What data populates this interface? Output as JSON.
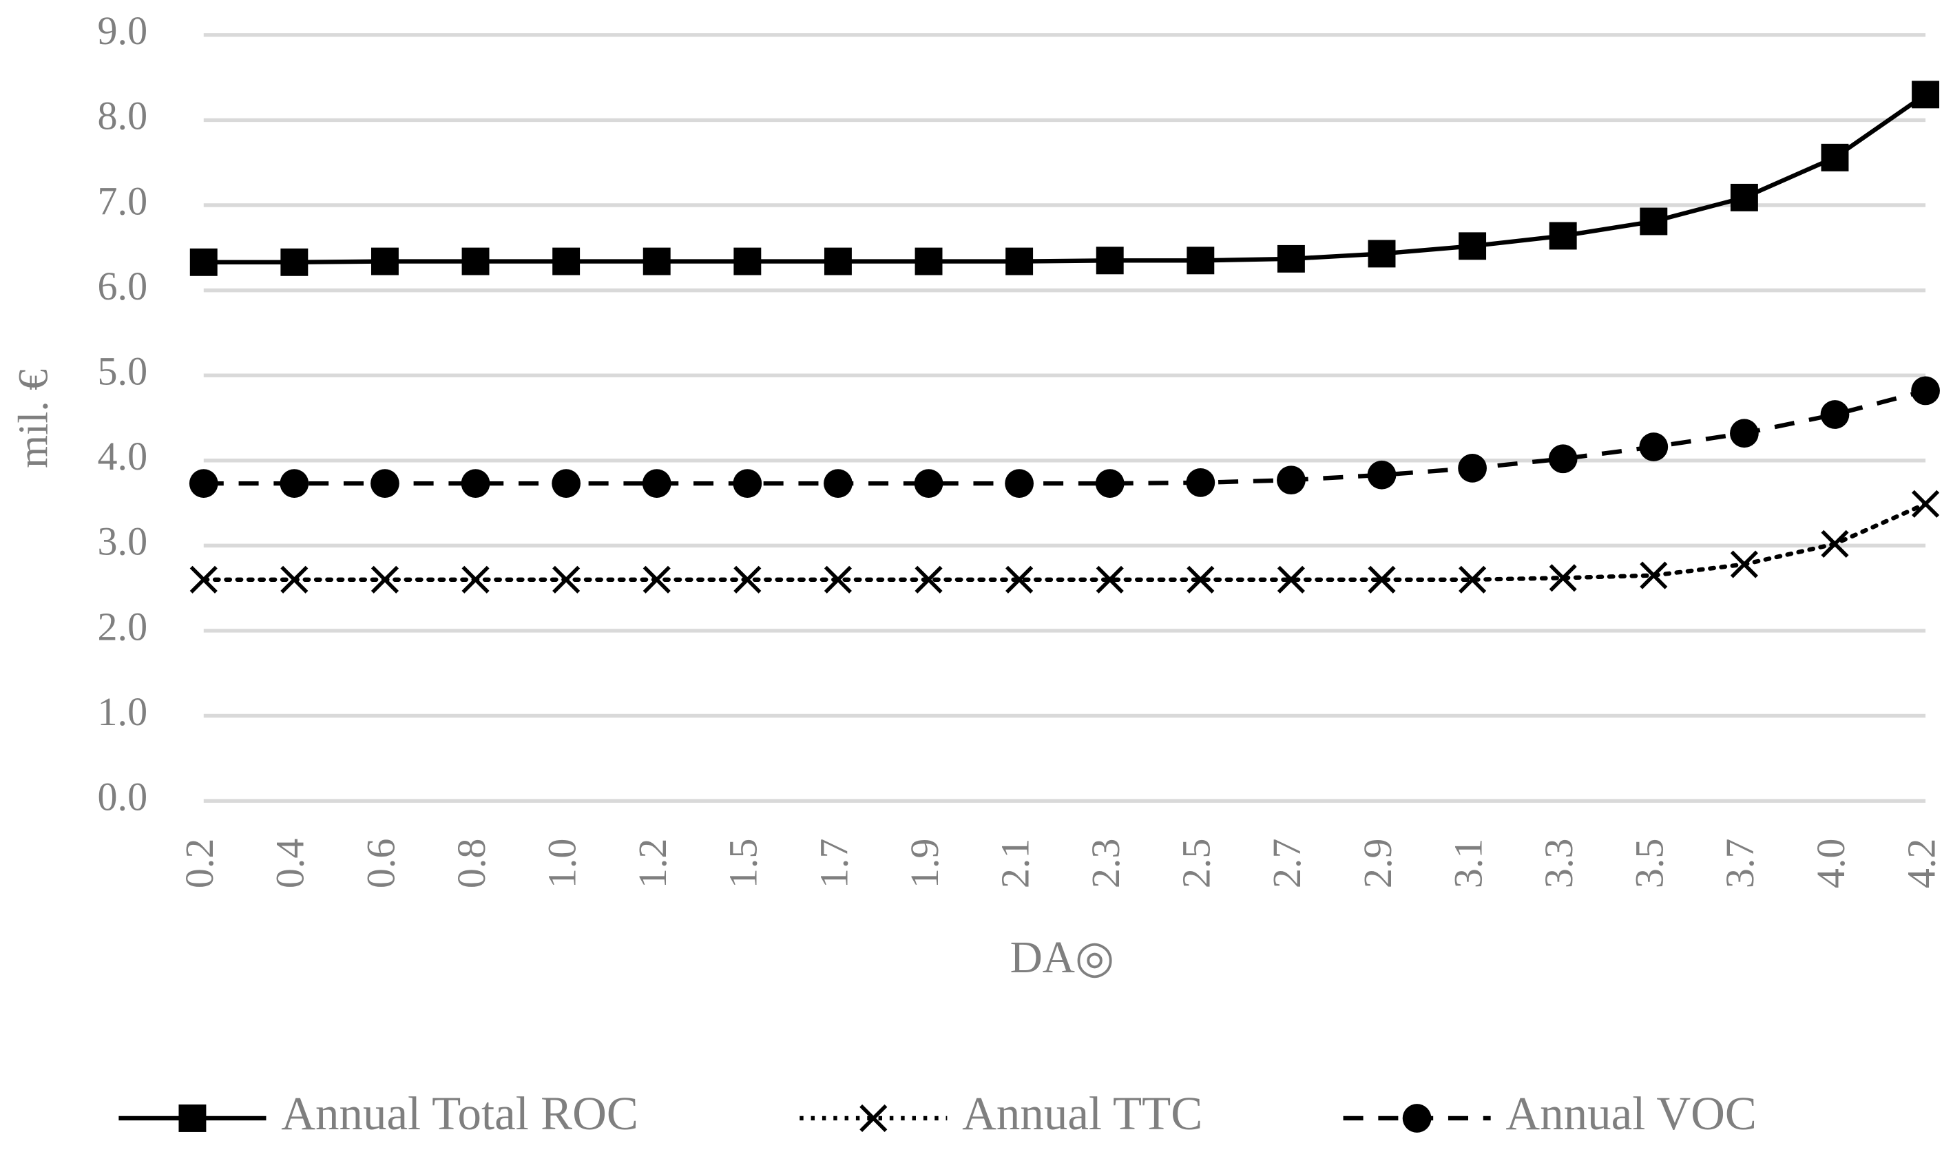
{
  "chart_data": {
    "type": "line",
    "x_label": "DA◎",
    "y_label": "mil. €",
    "categories": [
      "0.2",
      "0.4",
      "0.6",
      "0.8",
      "1.0",
      "1.2",
      "1.5",
      "1.7",
      "1.9",
      "2.1",
      "2.3",
      "2.5",
      "2.7",
      "2.9",
      "3.1",
      "3.3",
      "3.5",
      "3.7",
      "4.0",
      "4.2"
    ],
    "series": [
      {
        "name": "Annual Total ROC",
        "color": "#000000",
        "line_style": "solid",
        "marker": "square",
        "values": [
          6.33,
          6.33,
          6.34,
          6.34,
          6.34,
          6.34,
          6.34,
          6.34,
          6.34,
          6.34,
          6.35,
          6.35,
          6.37,
          6.43,
          6.52,
          6.64,
          6.81,
          7.09,
          7.56,
          8.3
        ]
      },
      {
        "name": "Annual TTC",
        "color": "#000000",
        "line_style": "dotted",
        "marker": "x",
        "values": [
          2.6,
          2.6,
          2.6,
          2.6,
          2.6,
          2.6,
          2.6,
          2.6,
          2.6,
          2.6,
          2.6,
          2.6,
          2.6,
          2.6,
          2.6,
          2.62,
          2.65,
          2.78,
          3.02,
          3.49
        ]
      },
      {
        "name": "Annual VOC",
        "color": "#000000",
        "line_style": "dashed",
        "marker": "circle",
        "values": [
          3.73,
          3.73,
          3.73,
          3.73,
          3.73,
          3.73,
          3.73,
          3.73,
          3.73,
          3.73,
          3.73,
          3.74,
          3.77,
          3.83,
          3.91,
          4.02,
          4.16,
          4.32,
          4.54,
          4.82
        ]
      }
    ],
    "ylim": [
      0,
      9
    ],
    "yticks": [
      {
        "value": 0,
        "label": "0.0"
      },
      {
        "value": 1,
        "label": "1.0"
      },
      {
        "value": 2,
        "label": "2.0"
      },
      {
        "value": 3,
        "label": "3.0"
      },
      {
        "value": 4,
        "label": "4.0"
      },
      {
        "value": 5,
        "label": "5.0"
      },
      {
        "value": 6,
        "label": "6.0"
      },
      {
        "value": 7,
        "label": "7.0"
      },
      {
        "value": 8,
        "label": "8.0"
      },
      {
        "value": 9,
        "label": "9.0"
      }
    ],
    "grid": true,
    "grid_color": "#d9d9d9",
    "legend": "bottom"
  }
}
